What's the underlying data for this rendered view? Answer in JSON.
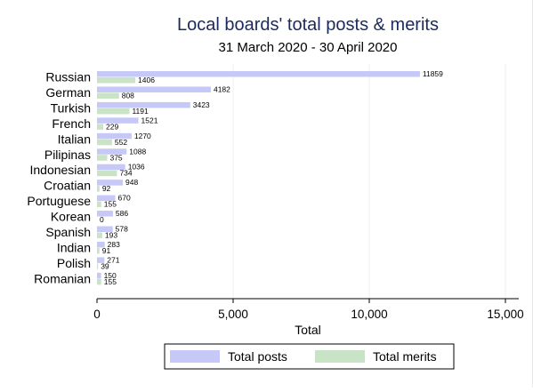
{
  "chart_data": {
    "type": "bar",
    "orientation": "horizontal",
    "title": "Local boards' total posts & merits",
    "subtitle": "31 March 2020 - 30 April 2020",
    "xlabel": "Total",
    "ylabel": "",
    "xlim": [
      0,
      15000
    ],
    "xticks": [
      0,
      5000,
      10000,
      15000
    ],
    "xtick_labels": [
      "0",
      "5,000",
      "10,000",
      "15,000"
    ],
    "grid": true,
    "legend_position": "bottom",
    "categories": [
      "Russian",
      "German",
      "Turkish",
      "French",
      "Italian",
      "Pilipinas",
      "Indonesian",
      "Croatian",
      "Portuguese",
      "Korean",
      "Spanish",
      "Indian",
      "Polish",
      "Romanian"
    ],
    "series": [
      {
        "name": "Total posts",
        "color": "#c6c8f7",
        "values": [
          11859,
          4182,
          3423,
          1521,
          1270,
          1088,
          1036,
          948,
          670,
          586,
          578,
          283,
          271,
          150
        ]
      },
      {
        "name": "Total merits",
        "color": "#c9e3c6",
        "values": [
          1406,
          808,
          1191,
          229,
          552,
          375,
          734,
          92,
          155,
          0,
          193,
          91,
          39,
          155
        ]
      }
    ]
  }
}
